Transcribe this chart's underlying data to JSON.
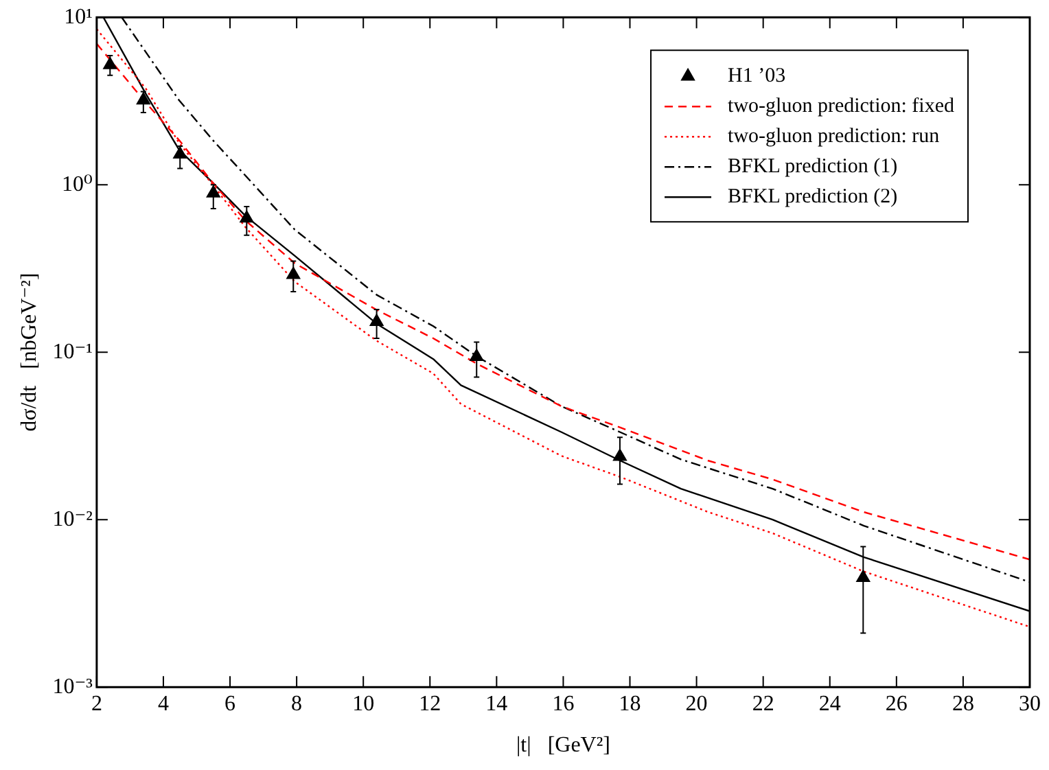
{
  "chart_data": {
    "type": "line",
    "xlabel": "|t|   [GeV²]",
    "ylabel": "dσ/dt   [nbGeV⁻²]",
    "log": "y",
    "grid": false,
    "legend": "top right",
    "xlim": [
      2,
      30
    ],
    "xticks": [
      2,
      4,
      6,
      8,
      10,
      12,
      14,
      16,
      18,
      20,
      22,
      24,
      26,
      28,
      30
    ],
    "ylim": [
      0.001,
      10
    ],
    "yticks": [
      {
        "value": 0.001,
        "label": "10⁻³"
      },
      {
        "value": 0.01,
        "label": "10⁻²"
      },
      {
        "value": 0.1,
        "label": "10⁻¹"
      },
      {
        "value": 1,
        "label": "10⁰"
      },
      {
        "value": 10,
        "label": "10¹"
      }
    ],
    "series": [
      {
        "name": "H1 ’03",
        "type": "scatter",
        "color": "#000000",
        "marker": "triangle",
        "x": [
          2.4,
          3.4,
          4.5,
          5.5,
          6.5,
          7.9,
          10.4,
          13.4,
          17.7,
          25.0
        ],
        "values": [
          5.2,
          3.2,
          1.52,
          0.89,
          0.63,
          0.29,
          0.152,
          0.094,
          0.0238,
          0.0045
        ],
        "errors": [
          [
            4.5,
            5.9
          ],
          [
            2.7,
            3.6
          ],
          [
            1.25,
            1.7
          ],
          [
            0.72,
            1.0
          ],
          [
            0.5,
            0.74
          ],
          [
            0.23,
            0.35
          ],
          [
            0.121,
            0.18
          ],
          [
            0.071,
            0.115
          ],
          [
            0.0163,
            0.031
          ],
          [
            0.0021,
            0.0069
          ]
        ]
      },
      {
        "name": "two-gluon prediction: fixed",
        "color": "#ff0000",
        "line_style": "dashed",
        "marker": "none",
        "x": [
          2,
          3.47,
          4.47,
          5.48,
          6.47,
          7.94,
          10.4,
          12.1,
          13.42,
          15.95,
          17.71,
          20.35,
          22.28,
          25.02,
          30
        ],
        "values": [
          6.95,
          3.1,
          1.85,
          1.03,
          0.61,
          0.34,
          0.179,
          0.121,
          0.085,
          0.0475,
          0.0355,
          0.0225,
          0.0174,
          0.0111,
          0.00578
        ]
      },
      {
        "name": "two-gluon prediction: run",
        "color": "#ff0000",
        "line_style": "dotted",
        "marker": "none",
        "x": [
          2,
          3.47,
          4.47,
          5.48,
          6.47,
          7.94,
          10.4,
          12.1,
          12.93,
          15.95,
          17.71,
          20.35,
          22.28,
          25.02,
          30
        ],
        "values": [
          8.5,
          3.76,
          1.78,
          1.0,
          0.556,
          0.264,
          0.117,
          0.0746,
          0.049,
          0.024,
          0.018,
          0.0111,
          0.0083,
          0.0049,
          0.00229
        ]
      },
      {
        "name": "BFKL prediction (1)",
        "color": "#000000",
        "line_style": "dashdot",
        "marker": "none",
        "x": [
          2.75,
          4.47,
          5.48,
          6.47,
          7.94,
          10.4,
          12.1,
          13.42,
          15.95,
          17.71,
          19.53,
          22.28,
          25.02,
          30
        ],
        "values": [
          10,
          3.2,
          1.85,
          1.13,
          0.54,
          0.22,
          0.143,
          0.094,
          0.0475,
          0.0333,
          0.0229,
          0.0153,
          0.0092,
          0.00424
        ]
      },
      {
        "name": "BFKL prediction (2)",
        "color": "#000000",
        "line_style": "solid",
        "marker": "none",
        "x": [
          2.2,
          3.47,
          4.47,
          5.48,
          6.47,
          7.94,
          10.4,
          12.1,
          12.93,
          15.95,
          17.71,
          19.53,
          22.28,
          25.02,
          30
        ],
        "values": [
          10,
          3.5,
          1.62,
          1.03,
          0.65,
          0.377,
          0.148,
          0.091,
          0.0635,
          0.0333,
          0.0225,
          0.0153,
          0.01,
          0.00597,
          0.00284
        ]
      }
    ]
  }
}
